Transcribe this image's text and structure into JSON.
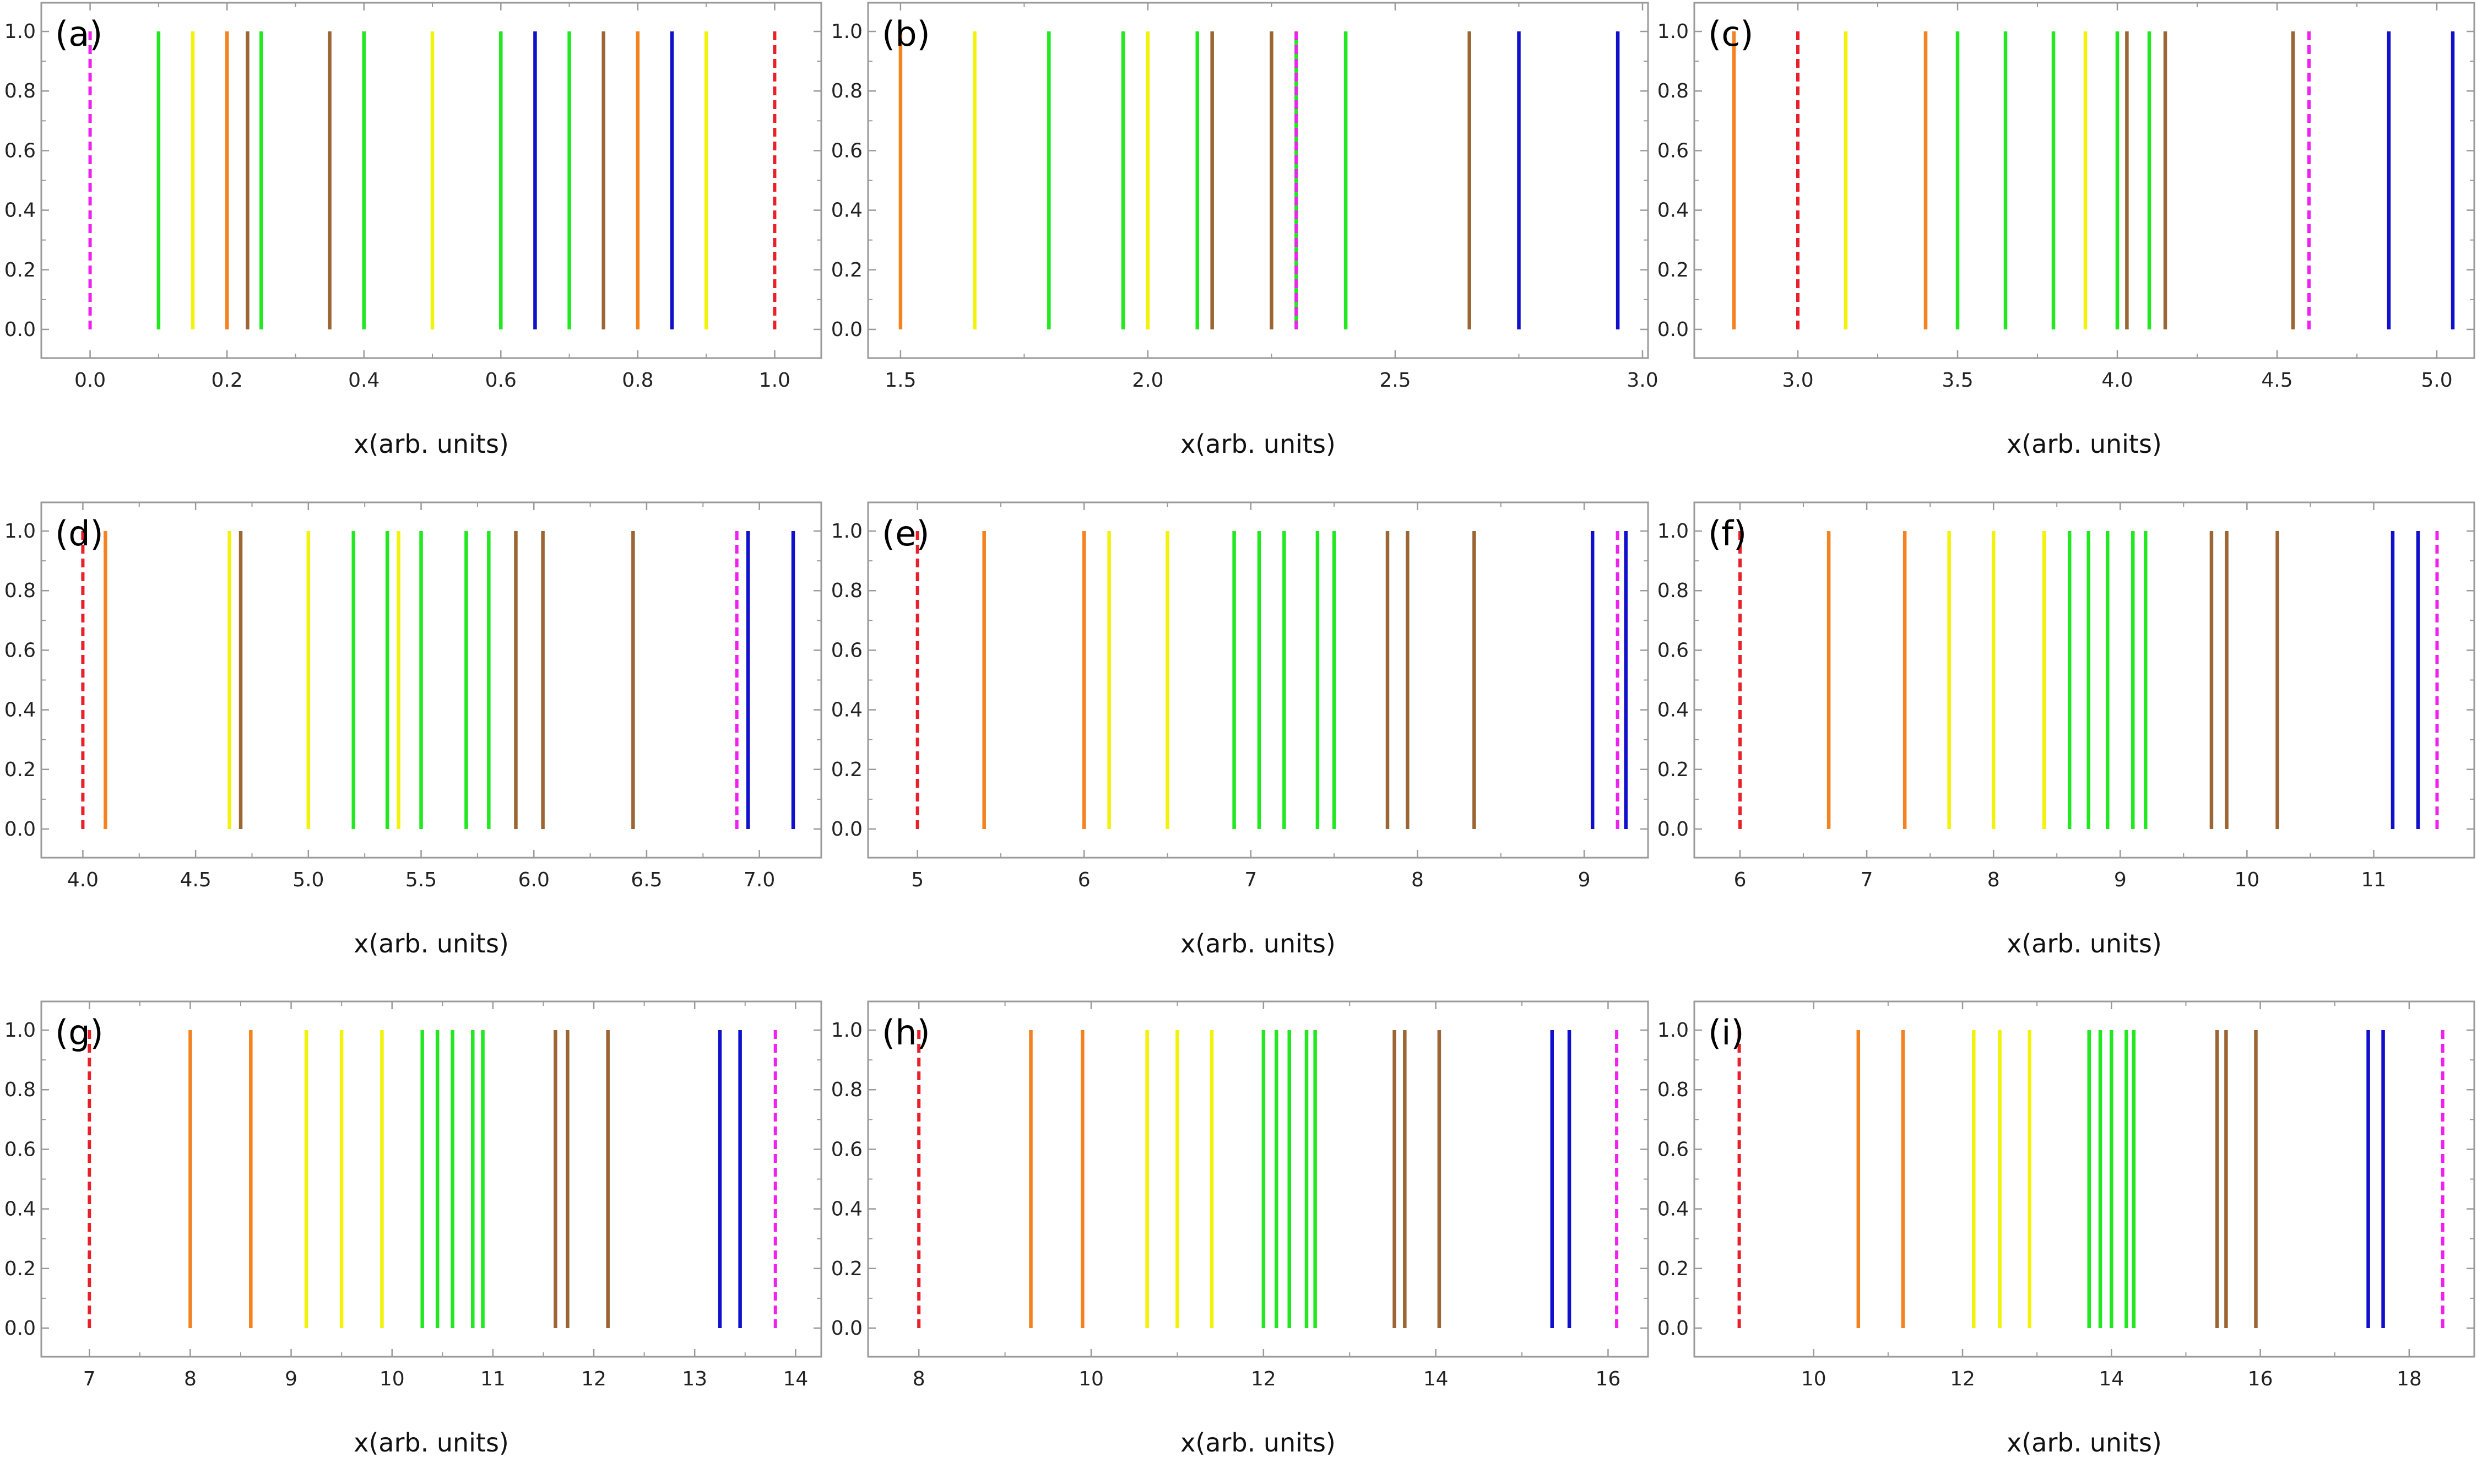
{
  "colors": {
    "orange": "#f58220",
    "yellow": "#f2f20a",
    "green": "#22e822",
    "brown": "#9b6633",
    "blue": "#1010cc",
    "red": "#e8202a",
    "magenta": "#f020f0",
    "frame": "#9a9a9a"
  },
  "chart_data": [
    {
      "type": "line",
      "panel_label": "(a)",
      "xlabel": "x(arb. units)",
      "xlim": [
        -0.06,
        1.06
      ],
      "ylim": [
        -0.05,
        1.05
      ],
      "xticks": [
        "0.0",
        "0.2",
        "0.4",
        "0.6",
        "0.8",
        "1.0"
      ],
      "xtick_values": [
        0,
        0.2,
        0.4,
        0.6,
        0.8,
        1.0
      ],
      "yticks": [
        "0.0",
        "0.2",
        "0.4",
        "0.6",
        "0.8",
        "1.0"
      ],
      "lines": [
        {
          "x": 0.0,
          "color": "magenta",
          "dashed": true
        },
        {
          "x": 0.1,
          "color": "green"
        },
        {
          "x": 0.15,
          "color": "yellow"
        },
        {
          "x": 0.2,
          "color": "orange"
        },
        {
          "x": 0.23,
          "color": "brown"
        },
        {
          "x": 0.25,
          "color": "green"
        },
        {
          "x": 0.35,
          "color": "brown"
        },
        {
          "x": 0.4,
          "color": "green"
        },
        {
          "x": 0.5,
          "color": "yellow"
        },
        {
          "x": 0.6,
          "color": "green"
        },
        {
          "x": 0.65,
          "color": "blue"
        },
        {
          "x": 0.7,
          "color": "green"
        },
        {
          "x": 0.75,
          "color": "brown"
        },
        {
          "x": 0.8,
          "color": "orange"
        },
        {
          "x": 0.85,
          "color": "blue"
        },
        {
          "x": 0.9,
          "color": "yellow"
        },
        {
          "x": 1.0,
          "color": "red",
          "dashed": true
        }
      ]
    },
    {
      "type": "line",
      "panel_label": "(b)",
      "xlabel": "x(arb. units)",
      "xlim": [
        1.45,
        3.0
      ],
      "ylim": [
        -0.05,
        1.05
      ],
      "xticks": [
        "1.5",
        "2.0",
        "2.5",
        "3.0"
      ],
      "xtick_values": [
        1.5,
        2.0,
        2.5,
        3.0
      ],
      "yticks": [
        "0.0",
        "0.2",
        "0.4",
        "0.6",
        "0.8",
        "1.0"
      ],
      "lines": [
        {
          "x": 1.5,
          "color": "orange"
        },
        {
          "x": 1.65,
          "color": "yellow"
        },
        {
          "x": 1.8,
          "color": "green"
        },
        {
          "x": 1.95,
          "color": "green"
        },
        {
          "x": 2.0,
          "color": "yellow"
        },
        {
          "x": 2.1,
          "color": "green"
        },
        {
          "x": 2.13,
          "color": "brown"
        },
        {
          "x": 2.25,
          "color": "brown"
        },
        {
          "x": 2.3,
          "color": "green"
        },
        {
          "x": 2.3,
          "color": "magenta",
          "dashed": true
        },
        {
          "x": 2.4,
          "color": "green"
        },
        {
          "x": 2.65,
          "color": "brown"
        },
        {
          "x": 2.75,
          "color": "blue"
        },
        {
          "x": 2.95,
          "color": "blue"
        }
      ]
    },
    {
      "type": "line",
      "panel_label": "(c)",
      "xlabel": "x(arb. units)",
      "xlim": [
        2.7,
        5.1
      ],
      "ylim": [
        -0.05,
        1.05
      ],
      "xticks": [
        "3.0",
        "3.5",
        "4.0",
        "4.5",
        "5.0"
      ],
      "xtick_values": [
        3.0,
        3.5,
        4.0,
        4.5,
        5.0
      ],
      "yticks": [
        "0.0",
        "0.2",
        "0.4",
        "0.6",
        "0.8",
        "1.0"
      ],
      "lines": [
        {
          "x": 2.8,
          "color": "orange"
        },
        {
          "x": 3.0,
          "color": "red",
          "dashed": true
        },
        {
          "x": 3.15,
          "color": "yellow"
        },
        {
          "x": 3.4,
          "color": "orange"
        },
        {
          "x": 3.5,
          "color": "green"
        },
        {
          "x": 3.65,
          "color": "green"
        },
        {
          "x": 3.8,
          "color": "green"
        },
        {
          "x": 3.9,
          "color": "yellow"
        },
        {
          "x": 4.0,
          "color": "green"
        },
        {
          "x": 4.03,
          "color": "brown"
        },
        {
          "x": 4.1,
          "color": "green"
        },
        {
          "x": 4.15,
          "color": "brown"
        },
        {
          "x": 4.55,
          "color": "brown"
        },
        {
          "x": 4.6,
          "color": "magenta",
          "dashed": true
        },
        {
          "x": 4.85,
          "color": "blue"
        },
        {
          "x": 5.05,
          "color": "blue"
        }
      ]
    },
    {
      "type": "line",
      "panel_label": "(d)",
      "xlabel": "x(arb. units)",
      "xlim": [
        3.85,
        7.25
      ],
      "ylim": [
        -0.05,
        1.05
      ],
      "xticks": [
        "4.0",
        "4.5",
        "5.0",
        "5.5",
        "6.0",
        "6.5",
        "7.0"
      ],
      "xtick_values": [
        4.0,
        4.5,
        5.0,
        5.5,
        6.0,
        6.5,
        7.0
      ],
      "yticks": [
        "0.0",
        "0.2",
        "0.4",
        "0.6",
        "0.8",
        "1.0"
      ],
      "lines": [
        {
          "x": 4.0,
          "color": "red",
          "dashed": true
        },
        {
          "x": 4.1,
          "color": "orange"
        },
        {
          "x": 4.65,
          "color": "yellow"
        },
        {
          "x": 4.7,
          "color": "brown"
        },
        {
          "x": 5.0,
          "color": "yellow"
        },
        {
          "x": 5.2,
          "color": "green"
        },
        {
          "x": 5.35,
          "color": "green"
        },
        {
          "x": 5.4,
          "color": "yellow"
        },
        {
          "x": 5.5,
          "color": "green"
        },
        {
          "x": 5.7,
          "color": "green"
        },
        {
          "x": 5.8,
          "color": "green"
        },
        {
          "x": 5.92,
          "color": "brown"
        },
        {
          "x": 6.04,
          "color": "brown"
        },
        {
          "x": 6.44,
          "color": "brown"
        },
        {
          "x": 6.9,
          "color": "magenta",
          "dashed": true
        },
        {
          "x": 6.95,
          "color": "blue"
        },
        {
          "x": 7.15,
          "color": "blue"
        }
      ]
    },
    {
      "type": "line",
      "panel_label": "(e)",
      "xlabel": "x(arb. units)",
      "xlim": [
        4.75,
        9.35
      ],
      "ylim": [
        -0.05,
        1.05
      ],
      "xticks": [
        "5",
        "6",
        "7",
        "8",
        "9"
      ],
      "xtick_values": [
        5,
        6,
        7,
        8,
        9
      ],
      "yticks": [
        "0.0",
        "0.2",
        "0.4",
        "0.6",
        "0.8",
        "1.0"
      ],
      "lines": [
        {
          "x": 5.0,
          "color": "red",
          "dashed": true
        },
        {
          "x": 5.4,
          "color": "orange"
        },
        {
          "x": 6.0,
          "color": "orange"
        },
        {
          "x": 6.15,
          "color": "yellow"
        },
        {
          "x": 6.5,
          "color": "yellow"
        },
        {
          "x": 6.9,
          "color": "green"
        },
        {
          "x": 7.05,
          "color": "green"
        },
        {
          "x": 7.2,
          "color": "green"
        },
        {
          "x": 7.4,
          "color": "green"
        },
        {
          "x": 7.5,
          "color": "green"
        },
        {
          "x": 7.82,
          "color": "brown"
        },
        {
          "x": 7.94,
          "color": "brown"
        },
        {
          "x": 8.34,
          "color": "brown"
        },
        {
          "x": 9.05,
          "color": "blue"
        },
        {
          "x": 9.2,
          "color": "magenta",
          "dashed": true
        },
        {
          "x": 9.25,
          "color": "blue"
        }
      ]
    },
    {
      "type": "line",
      "panel_label": "(f)",
      "xlabel": "x(arb. units)",
      "xlim": [
        5.7,
        11.75
      ],
      "ylim": [
        -0.05,
        1.05
      ],
      "xticks": [
        "6",
        "7",
        "8",
        "9",
        "10",
        "11"
      ],
      "xtick_values": [
        6,
        7,
        8,
        9,
        10,
        11
      ],
      "yticks": [
        "0.0",
        "0.2",
        "0.4",
        "0.6",
        "0.8",
        "1.0"
      ],
      "lines": [
        {
          "x": 6.0,
          "color": "red",
          "dashed": true
        },
        {
          "x": 6.7,
          "color": "orange"
        },
        {
          "x": 7.3,
          "color": "orange"
        },
        {
          "x": 7.65,
          "color": "yellow"
        },
        {
          "x": 8.0,
          "color": "yellow"
        },
        {
          "x": 8.4,
          "color": "yellow"
        },
        {
          "x": 8.6,
          "color": "green"
        },
        {
          "x": 8.75,
          "color": "green"
        },
        {
          "x": 8.9,
          "color": "green"
        },
        {
          "x": 9.1,
          "color": "green"
        },
        {
          "x": 9.2,
          "color": "green"
        },
        {
          "x": 9.72,
          "color": "brown"
        },
        {
          "x": 9.84,
          "color": "brown"
        },
        {
          "x": 10.24,
          "color": "brown"
        },
        {
          "x": 11.15,
          "color": "blue"
        },
        {
          "x": 11.35,
          "color": "blue"
        },
        {
          "x": 11.5,
          "color": "magenta",
          "dashed": true
        }
      ]
    },
    {
      "type": "line",
      "panel_label": "(g)",
      "xlabel": "x(arb. units)",
      "xlim": [
        6.6,
        14.2
      ],
      "ylim": [
        -0.05,
        1.05
      ],
      "xticks": [
        "7",
        "8",
        "9",
        "10",
        "11",
        "12",
        "13",
        "14"
      ],
      "xtick_values": [
        7,
        8,
        9,
        10,
        11,
        12,
        13,
        14
      ],
      "yticks": [
        "0.0",
        "0.2",
        "0.4",
        "0.6",
        "0.8",
        "1.0"
      ],
      "lines": [
        {
          "x": 7.0,
          "color": "red",
          "dashed": true
        },
        {
          "x": 8.0,
          "color": "orange"
        },
        {
          "x": 8.6,
          "color": "orange"
        },
        {
          "x": 9.15,
          "color": "yellow"
        },
        {
          "x": 9.5,
          "color": "yellow"
        },
        {
          "x": 9.9,
          "color": "yellow"
        },
        {
          "x": 10.3,
          "color": "green"
        },
        {
          "x": 10.45,
          "color": "green"
        },
        {
          "x": 10.6,
          "color": "green"
        },
        {
          "x": 10.8,
          "color": "green"
        },
        {
          "x": 10.9,
          "color": "green"
        },
        {
          "x": 11.62,
          "color": "brown"
        },
        {
          "x": 11.74,
          "color": "brown"
        },
        {
          "x": 12.14,
          "color": "brown"
        },
        {
          "x": 13.25,
          "color": "blue"
        },
        {
          "x": 13.45,
          "color": "blue"
        },
        {
          "x": 13.8,
          "color": "magenta",
          "dashed": true
        }
      ]
    },
    {
      "type": "line",
      "panel_label": "(h)",
      "xlabel": "x(arb. units)",
      "xlim": [
        7.5,
        16.4
      ],
      "ylim": [
        -0.05,
        1.05
      ],
      "xticks": [
        "8",
        "10",
        "12",
        "14",
        "16"
      ],
      "xtick_values": [
        8,
        10,
        12,
        14,
        16
      ],
      "yticks": [
        "0.0",
        "0.2",
        "0.4",
        "0.6",
        "0.8",
        "1.0"
      ],
      "lines": [
        {
          "x": 8.0,
          "color": "red",
          "dashed": true
        },
        {
          "x": 9.3,
          "color": "orange"
        },
        {
          "x": 9.9,
          "color": "orange"
        },
        {
          "x": 10.65,
          "color": "yellow"
        },
        {
          "x": 11.0,
          "color": "yellow"
        },
        {
          "x": 11.4,
          "color": "yellow"
        },
        {
          "x": 12.0,
          "color": "green"
        },
        {
          "x": 12.15,
          "color": "green"
        },
        {
          "x": 12.3,
          "color": "green"
        },
        {
          "x": 12.5,
          "color": "green"
        },
        {
          "x": 12.6,
          "color": "green"
        },
        {
          "x": 13.52,
          "color": "brown"
        },
        {
          "x": 13.64,
          "color": "brown"
        },
        {
          "x": 14.04,
          "color": "brown"
        },
        {
          "x": 15.35,
          "color": "blue"
        },
        {
          "x": 15.55,
          "color": "blue"
        },
        {
          "x": 16.1,
          "color": "magenta",
          "dashed": true
        }
      ]
    },
    {
      "type": "line",
      "panel_label": "(i)",
      "xlabel": "x(arb. units)",
      "xlim": [
        8.5,
        18.8
      ],
      "ylim": [
        -0.05,
        1.05
      ],
      "xticks": [
        "10",
        "12",
        "14",
        "16",
        "18"
      ],
      "xtick_values": [
        10,
        12,
        14,
        16,
        18
      ],
      "yticks": [
        "0.0",
        "0.2",
        "0.4",
        "0.6",
        "0.8",
        "1.0"
      ],
      "lines": [
        {
          "x": 9.0,
          "color": "red",
          "dashed": true
        },
        {
          "x": 10.6,
          "color": "orange"
        },
        {
          "x": 11.2,
          "color": "orange"
        },
        {
          "x": 12.15,
          "color": "yellow"
        },
        {
          "x": 12.5,
          "color": "yellow"
        },
        {
          "x": 12.9,
          "color": "yellow"
        },
        {
          "x": 13.7,
          "color": "green"
        },
        {
          "x": 13.85,
          "color": "green"
        },
        {
          "x": 14.0,
          "color": "green"
        },
        {
          "x": 14.2,
          "color": "green"
        },
        {
          "x": 14.3,
          "color": "green"
        },
        {
          "x": 15.42,
          "color": "brown"
        },
        {
          "x": 15.54,
          "color": "brown"
        },
        {
          "x": 15.94,
          "color": "brown"
        },
        {
          "x": 17.45,
          "color": "blue"
        },
        {
          "x": 17.65,
          "color": "blue"
        },
        {
          "x": 18.45,
          "color": "magenta",
          "dashed": true
        }
      ]
    }
  ]
}
